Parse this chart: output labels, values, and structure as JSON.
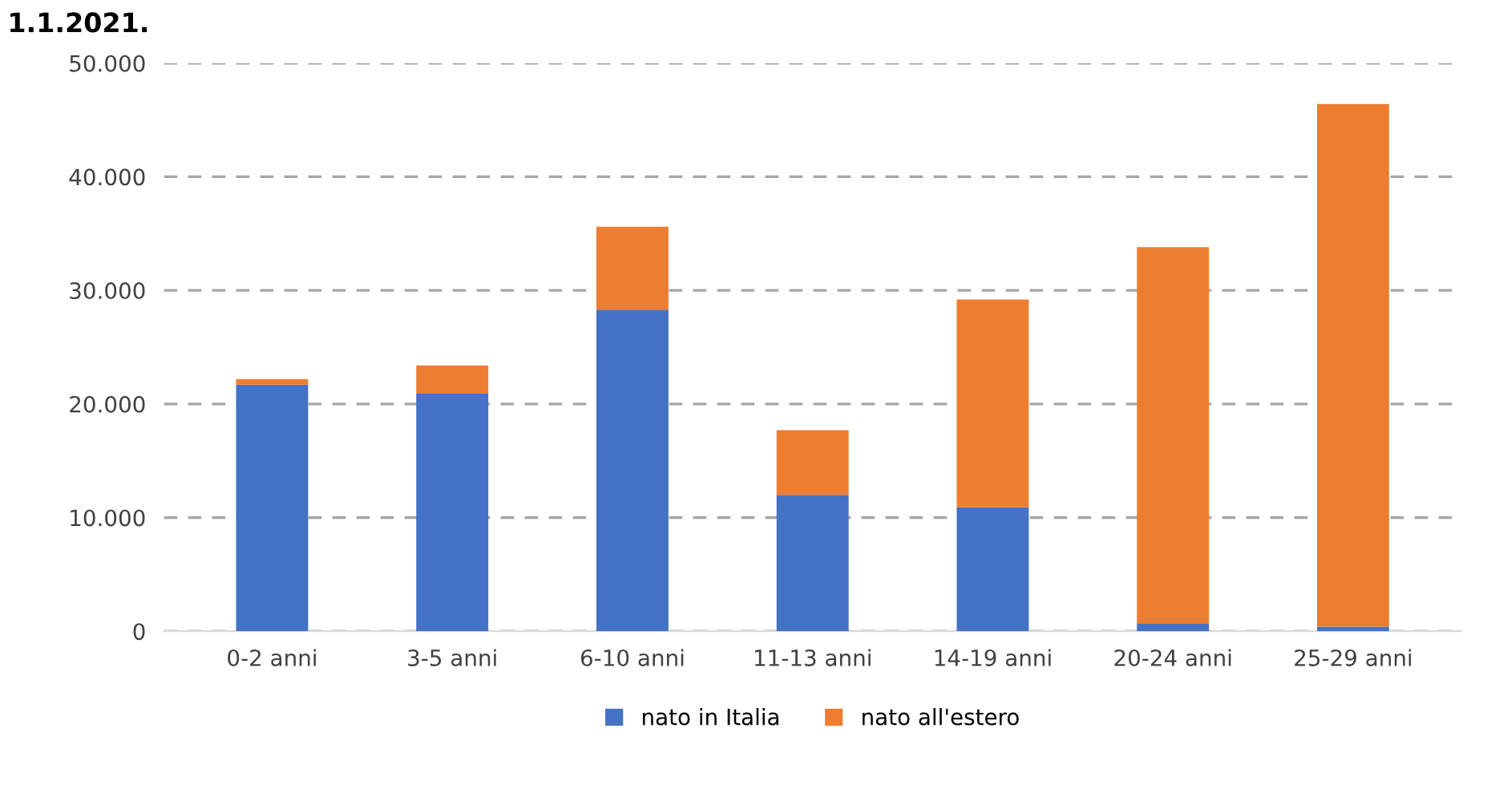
{
  "chart_data": {
    "type": "bar",
    "title": "1.1.2021.",
    "stacked": true,
    "categories": [
      "0-2 anni",
      "3-5 anni",
      "6-10 anni",
      "11-13 anni",
      "14-19 anni",
      "20-24 anni",
      "25-29 anni"
    ],
    "series": [
      {
        "name": "nato in Italia",
        "color": "#4472c4",
        "values": [
          21700,
          20900,
          28300,
          12000,
          10900,
          700,
          400
        ]
      },
      {
        "name": "nato all'estero",
        "color": "#ed7d31",
        "values": [
          500,
          2500,
          7300,
          5700,
          18300,
          33100,
          46000
        ]
      }
    ],
    "ylim": [
      0,
      50000
    ],
    "yticks": [
      {
        "value": 0,
        "label": "0"
      },
      {
        "value": 10000,
        "label": "10.000"
      },
      {
        "value": 20000,
        "label": "20.000"
      },
      {
        "value": 30000,
        "label": "30.000"
      },
      {
        "value": 40000,
        "label": "40.000"
      },
      {
        "value": 50000,
        "label": "50.000"
      }
    ],
    "grid": "y",
    "legend": "bottom"
  }
}
